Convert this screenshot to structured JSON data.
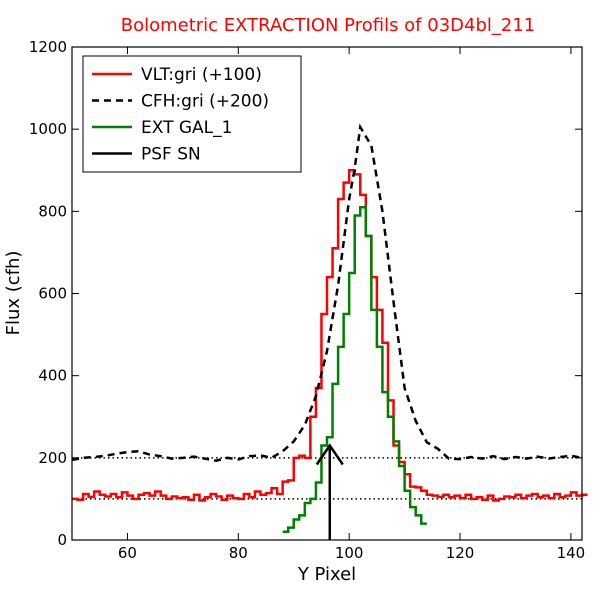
{
  "chart_data": {
    "type": "line",
    "title": "Bolometric EXTRACTION Profils of 03D4bl_211",
    "xlabel": "Y Pixel",
    "ylabel": "Flux (cfh)",
    "xlim": [
      50,
      142
    ],
    "ylim": [
      0,
      1200
    ],
    "x_ticks": [
      60,
      80,
      100,
      120,
      140
    ],
    "y_ticks": [
      0,
      200,
      400,
      600,
      800,
      1000,
      1200
    ],
    "grid": false,
    "legend_position": "top-left",
    "reference_lines": [
      {
        "y": 200,
        "style": "dotted",
        "color": "#000000"
      },
      {
        "y": 100,
        "style": "dotted",
        "color": "#000000"
      }
    ],
    "series": [
      {
        "name": "VLT:gri (+100)",
        "color": "#ff0000",
        "style": "steps",
        "x": [
          50,
          51,
          52,
          53,
          54,
          55,
          56,
          57,
          58,
          59,
          60,
          61,
          62,
          63,
          64,
          65,
          66,
          67,
          68,
          69,
          70,
          71,
          72,
          73,
          74,
          75,
          76,
          77,
          78,
          79,
          80,
          81,
          82,
          83,
          84,
          85,
          86,
          87,
          88,
          89,
          90,
          91,
          92,
          93,
          94,
          95,
          96,
          97,
          98,
          99,
          100,
          101,
          102,
          103,
          104,
          105,
          106,
          107,
          108,
          109,
          110,
          111,
          112,
          113,
          114,
          115,
          116,
          117,
          118,
          119,
          120,
          121,
          122,
          123,
          124,
          125,
          126,
          127,
          128,
          129,
          130,
          131,
          132,
          133,
          134,
          135,
          136,
          137,
          138,
          139,
          140,
          141,
          142
        ],
        "y": [
          100,
          98,
          112,
          105,
          118,
          110,
          106,
          112,
          104,
          116,
          108,
          100,
          110,
          114,
          108,
          118,
          108,
          100,
          106,
          102,
          104,
          98,
          110,
          96,
          104,
          112,
          106,
          98,
          108,
          102,
          100,
          112,
          104,
          118,
          110,
          114,
          126,
          112,
          142,
          145,
          200,
          205,
          200,
          300,
          370,
          550,
          640,
          710,
          830,
          870,
          900,
          890,
          840,
          740,
          640,
          560,
          480,
          340,
          230,
          190,
          160,
          130,
          128,
          120,
          110,
          108,
          105,
          110,
          104,
          108,
          102,
          110,
          100,
          104,
          98,
          108,
          96,
          100,
          106,
          104,
          110,
          102,
          108,
          112,
          104,
          108,
          102,
          112,
          104,
          108,
          116,
          108,
          110
        ]
      },
      {
        "name": "CFH:gri (+200)",
        "color": "#000000",
        "style": "dashed",
        "x": [
          50,
          52,
          54,
          56,
          58,
          60,
          62,
          64,
          66,
          68,
          70,
          72,
          74,
          76,
          78,
          80,
          82,
          84,
          86,
          88,
          90,
          92,
          94,
          96,
          98,
          100,
          101,
          102,
          104,
          106,
          108,
          110,
          112,
          114,
          116,
          118,
          120,
          122,
          124,
          126,
          128,
          130,
          132,
          134,
          136,
          138,
          140,
          142
        ],
        "y": [
          195,
          200,
          202,
          205,
          210,
          214,
          216,
          208,
          204,
          198,
          200,
          203,
          198,
          193,
          200,
          196,
          204,
          206,
          200,
          216,
          240,
          280,
          350,
          460,
          620,
          830,
          905,
          1005,
          960,
          800,
          580,
          370,
          290,
          238,
          222,
          198,
          197,
          202,
          198,
          204,
          197,
          202,
          198,
          203,
          198,
          202,
          205,
          200
        ]
      },
      {
        "name": "EXT GAL_1",
        "color": "#008000",
        "style": "steps",
        "x": [
          88,
          89,
          90,
          91,
          92,
          93,
          94,
          95,
          96,
          97,
          98,
          99,
          100,
          101,
          102,
          103,
          104,
          105,
          106,
          107,
          108,
          109,
          110,
          111,
          112,
          113
        ],
        "y": [
          20,
          30,
          50,
          60,
          90,
          100,
          140,
          230,
          250,
          380,
          470,
          550,
          650,
          790,
          810,
          740,
          560,
          470,
          360,
          300,
          240,
          180,
          120,
          80,
          60,
          40
        ]
      }
    ],
    "annotations": [
      {
        "name": "PSF SN",
        "type": "arrow",
        "x": 96.5,
        "y_from": 0,
        "y_to": 230,
        "color": "#000000"
      }
    ],
    "legend": [
      {
        "label": "VLT:gri (+100)",
        "color": "#ff0000",
        "style": "solid"
      },
      {
        "label": "CFH:gri (+200)",
        "color": "#000000",
        "style": "dashed"
      },
      {
        "label": "EXT GAL_1",
        "color": "#008000",
        "style": "solid"
      },
      {
        "label": "PSF SN",
        "color": "#000000",
        "style": "solid"
      }
    ]
  }
}
